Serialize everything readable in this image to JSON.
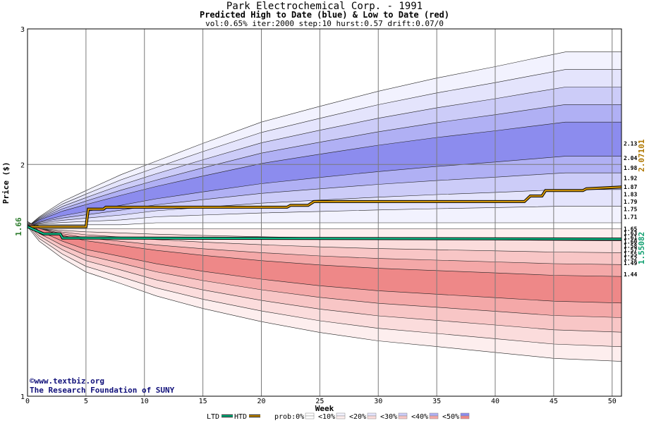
{
  "header": {
    "title": "Park Electrochemical Corp. - 1991",
    "subtitle": "Predicted High to Date (blue) &  Low to Date (red)",
    "params": "vol:0.65% iter:2000 step:10 hurst:0.57 drift:0.07/0"
  },
  "credits": {
    "line1": "©www.textbiz.org",
    "line2": "The Research Foundation of SUNY"
  },
  "chart_data": {
    "type": "area",
    "xlabel": "Week",
    "ylabel": "Price ($)",
    "xlim": [
      0,
      50.8
    ],
    "ylim": [
      1,
      3
    ],
    "yscale": "log",
    "xticks": [
      0,
      5,
      10,
      15,
      20,
      25,
      30,
      35,
      40,
      45,
      50
    ],
    "yticks": [
      1,
      2,
      3
    ],
    "grid": true,
    "start_price_label": "1.66",
    "start_price": 1.66,
    "high_final_label": "2.07101",
    "low_final_label": "1.55082",
    "high_band_outer": {
      "x": [
        0,
        1,
        2,
        3,
        5,
        8,
        11,
        15,
        20,
        25,
        30,
        35,
        40,
        43,
        46,
        50.8
      ],
      "upper": [
        1.66,
        1.71,
        1.75,
        1.79,
        1.85,
        1.94,
        2.02,
        2.13,
        2.27,
        2.38,
        2.49,
        2.59,
        2.68,
        2.74,
        2.8,
        2.8
      ],
      "lower": [
        1.66,
        1.67,
        1.67,
        1.67,
        1.67,
        1.67,
        1.68,
        1.68,
        1.68,
        1.68,
        1.68,
        1.68,
        1.68,
        1.68,
        1.68,
        1.68
      ]
    },
    "high_band_levels": [
      {
        "label": "<10%",
        "color": "#f2f2fe"
      },
      {
        "label": "<20%",
        "color": "#e4e4fc"
      },
      {
        "label": "<30%",
        "color": "#ccccf8"
      },
      {
        "label": "<40%",
        "color": "#b0b0f4"
      },
      {
        "label": "<50%",
        "color": "#8c8cee"
      }
    ],
    "low_band_outer": {
      "x": [
        0,
        1,
        2,
        3,
        5,
        8,
        11,
        15,
        20,
        25,
        30,
        35,
        40,
        45,
        50.8
      ],
      "upper": [
        1.66,
        1.65,
        1.65,
        1.65,
        1.65,
        1.65,
        1.65,
        1.65,
        1.65,
        1.65,
        1.65,
        1.65,
        1.65,
        1.65,
        1.65
      ],
      "lower": [
        1.66,
        1.59,
        1.55,
        1.51,
        1.45,
        1.4,
        1.35,
        1.3,
        1.25,
        1.21,
        1.18,
        1.16,
        1.14,
        1.12,
        1.11
      ]
    },
    "low_band_levels": [
      {
        "label": "<10%",
        "color": "#fdeeee"
      },
      {
        "label": "<20%",
        "color": "#fbdcdc"
      },
      {
        "label": "<30%",
        "color": "#f8c6c6"
      },
      {
        "label": "<40%",
        "color": "#f4a8a8"
      },
      {
        "label": "<50%",
        "color": "#ee8888"
      }
    ],
    "quantile_labels_high": [
      "2.13",
      "2.04",
      "1.98",
      "1.92",
      "1.87",
      "1.83",
      "1.79",
      "1.75",
      "1.71"
    ],
    "quantile_labels_low": [
      "1.65",
      "1.63",
      "1.61",
      "1.60",
      "1.58",
      "1.57",
      "1.55",
      "1.52",
      "1.49",
      "1.44"
    ],
    "series": [
      {
        "name": "HTD",
        "color": "#d89a00",
        "x": [
          0,
          5,
          5.2,
          6.5,
          6.7,
          22.2,
          22.5,
          24,
          24.5,
          42.5,
          43,
          44,
          44.3,
          47.5,
          47.8,
          50.8
        ],
        "y": [
          1.66,
          1.66,
          1.75,
          1.75,
          1.76,
          1.76,
          1.77,
          1.77,
          1.79,
          1.79,
          1.82,
          1.82,
          1.85,
          1.85,
          1.86,
          1.87
        ]
      },
      {
        "name": "LTD",
        "color": "#10c890",
        "x": [
          0,
          0.8,
          1.4,
          2.8,
          3.0,
          50.8
        ],
        "y": [
          1.66,
          1.64,
          1.625,
          1.625,
          1.605,
          1.6
        ]
      }
    ],
    "legend": {
      "position": "bottom",
      "items": [
        {
          "label": "LTD",
          "color": "#10c890",
          "kind": "line"
        },
        {
          "label": "HTD",
          "color": "#d89a00",
          "kind": "line"
        },
        {
          "label": "prob:0%",
          "color": "#ffffff",
          "color2": "#ffffff",
          "kind": "swatch"
        },
        {
          "label": "<10%",
          "color": "#f2f2fe",
          "color2": "#fdeeee",
          "kind": "swatch"
        },
        {
          "label": "<20%",
          "color": "#e4e4fc",
          "color2": "#fbdcdc",
          "kind": "swatch"
        },
        {
          "label": "<30%",
          "color": "#ccccf8",
          "color2": "#f8c6c6",
          "kind": "swatch"
        },
        {
          "label": "<40%",
          "color": "#b0b0f4",
          "color2": "#f4a8a8",
          "kind": "swatch"
        },
        {
          "label": "<50%",
          "color": "#8c8cee",
          "color2": "#ee8888",
          "kind": "swatch"
        }
      ]
    }
  }
}
